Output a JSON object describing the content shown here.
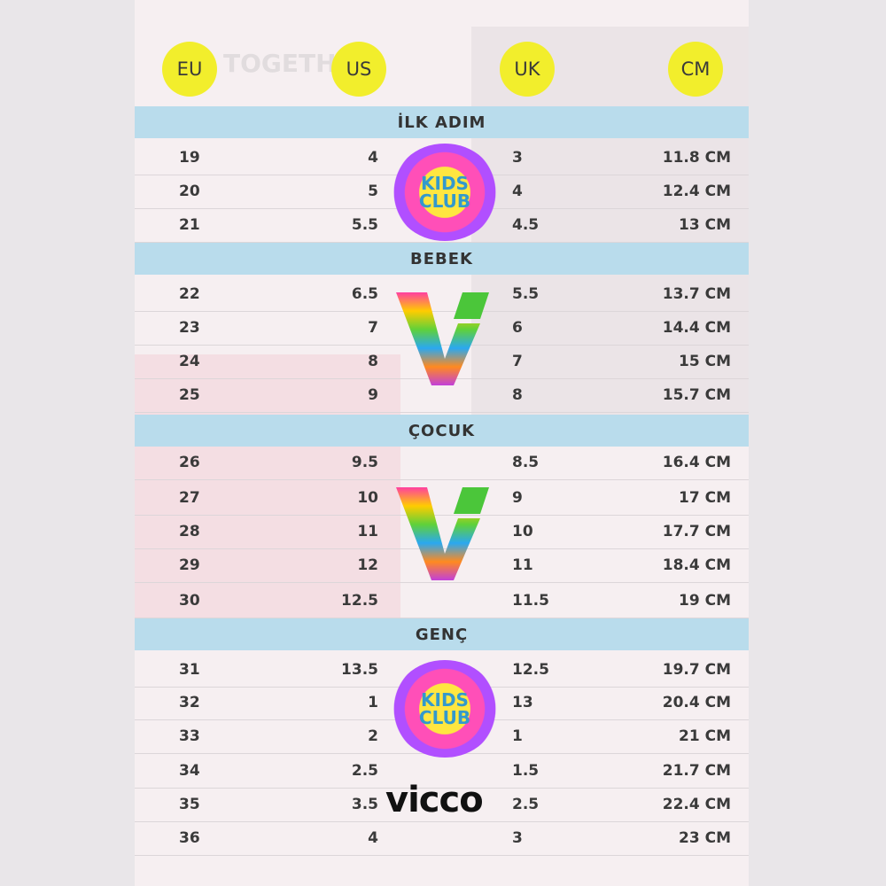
{
  "headers": [
    "EU",
    "US",
    "UK",
    "CM"
  ],
  "background_text": "TOGETHE",
  "sections": [
    {
      "title": "İLK ADIM",
      "rows": [
        [
          "19",
          "4",
          "3",
          "11.8 CM"
        ],
        [
          "20",
          "5",
          "4",
          "12.4 CM"
        ],
        [
          "21",
          "5.5",
          "4.5",
          "13 CM"
        ]
      ]
    },
    {
      "title": "BEBEK",
      "rows": [
        [
          "22",
          "6.5",
          "5.5",
          "13.7 CM"
        ],
        [
          "23",
          "7",
          "6",
          "14.4 CM"
        ],
        [
          "24",
          "8",
          "7",
          "15 CM"
        ],
        [
          "25",
          "9",
          "8",
          "15.7 CM"
        ]
      ]
    },
    {
      "title": "ÇOCUK",
      "rows": [
        [
          "26",
          "9.5",
          "8.5",
          "16.4 CM"
        ],
        [
          "27",
          "10",
          "9",
          "17 CM"
        ],
        [
          "28",
          "11",
          "10",
          "17.7 CM"
        ],
        [
          "29",
          "12",
          "11",
          "18.4 CM"
        ],
        [
          "30",
          "12.5",
          "11.5",
          "19 CM"
        ]
      ]
    },
    {
      "title": "GENÇ",
      "rows": [
        [
          "31",
          "13.5",
          "12.5",
          "19.7 CM"
        ],
        [
          "32",
          "1",
          "13",
          "20.4 CM"
        ],
        [
          "33",
          "2",
          "1",
          "21 CM"
        ],
        [
          "34",
          "2.5",
          "1.5",
          "21.7 CM"
        ],
        [
          "35",
          "3.5",
          "2.5",
          "22.4 CM"
        ],
        [
          "36",
          "4",
          "3",
          "23 CM"
        ]
      ]
    }
  ],
  "logos": {
    "kids_club_line1": "KIDS",
    "kids_club_line2": "CLUB",
    "vicco": "vicco"
  },
  "colors": {
    "header_circle": "#f2ee2c",
    "section_band": "#b9dcec"
  }
}
